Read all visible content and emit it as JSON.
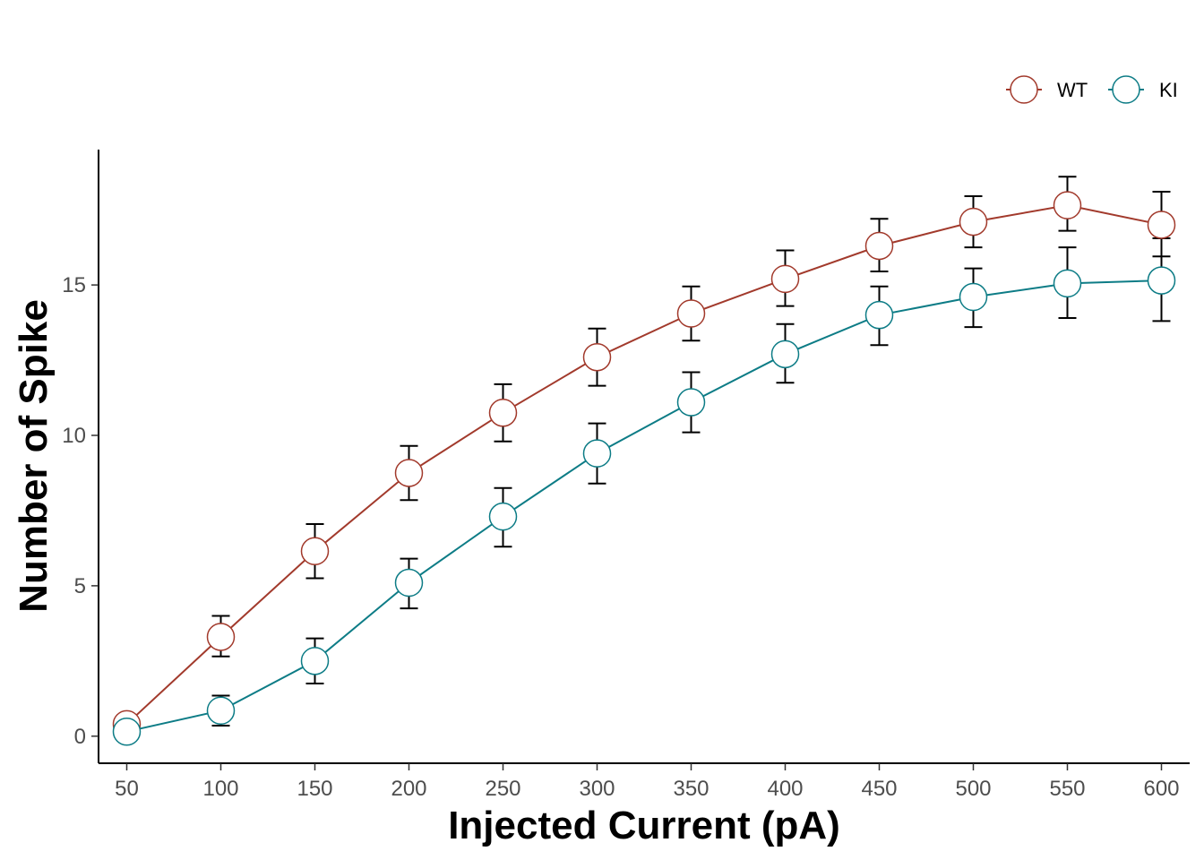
{
  "chart_data": {
    "type": "line",
    "title": "",
    "xlabel": "Injected Current (pA)",
    "ylabel": "Number of Spike",
    "categories": [
      "50",
      "100",
      "150",
      "200",
      "250",
      "300",
      "350",
      "400",
      "450",
      "500",
      "550",
      "600"
    ],
    "x": [
      50,
      100,
      150,
      200,
      250,
      300,
      350,
      400,
      450,
      500,
      550,
      600
    ],
    "xlim": [
      35,
      615
    ],
    "ylim": [
      -0.9,
      19.5
    ],
    "yticks": [
      0,
      5,
      10,
      15
    ],
    "ytick_labels": [
      "0",
      "5",
      "10",
      "15"
    ],
    "grid": false,
    "legend": "top-right",
    "series": [
      {
        "name": "WT",
        "color": "#A23A2C",
        "values": [
          0.4,
          3.3,
          6.15,
          8.75,
          10.75,
          12.6,
          14.05,
          15.2,
          16.3,
          17.1,
          17.65,
          17.0
        ],
        "err_upper": [
          0.4,
          4.0,
          7.05,
          9.65,
          11.7,
          13.55,
          14.95,
          16.15,
          17.2,
          17.95,
          18.6,
          18.1
        ],
        "err_lower": [
          0.4,
          2.65,
          5.25,
          7.85,
          9.8,
          11.65,
          13.15,
          14.3,
          15.45,
          16.25,
          16.8,
          15.95
        ]
      },
      {
        "name": "KI",
        "color": "#0D7C86",
        "values": [
          0.15,
          0.85,
          2.5,
          5.1,
          7.3,
          9.4,
          11.1,
          12.7,
          14.0,
          14.6,
          15.05,
          15.15
        ],
        "err_upper": [
          0.15,
          1.35,
          3.25,
          5.9,
          8.25,
          10.4,
          12.1,
          13.7,
          14.95,
          15.55,
          16.25,
          16.55
        ],
        "err_lower": [
          0.15,
          0.35,
          1.75,
          4.25,
          6.3,
          8.4,
          10.1,
          11.75,
          13.0,
          13.6,
          13.9,
          13.8
        ]
      }
    ]
  }
}
